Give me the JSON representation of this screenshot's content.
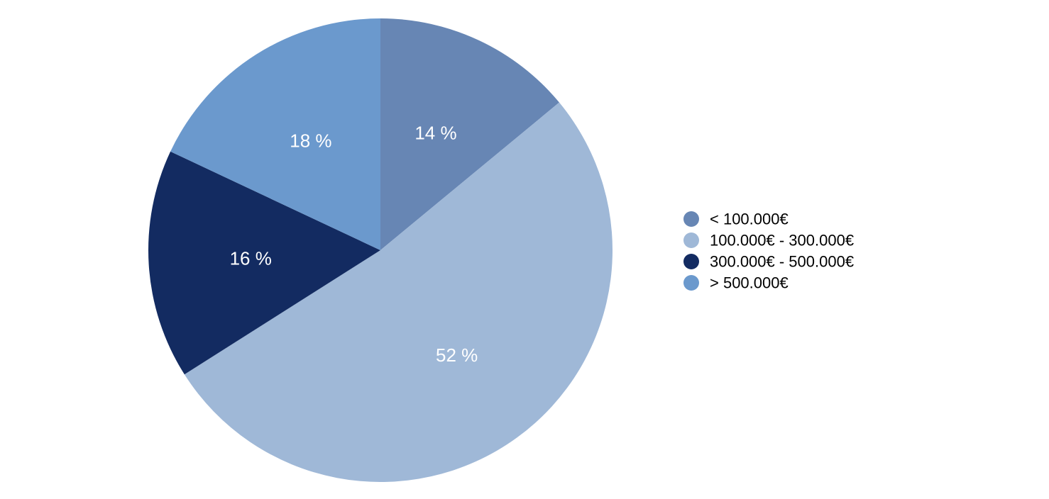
{
  "chart_data": {
    "type": "pie",
    "start_angle_deg": 0,
    "direction": "clockwise",
    "legend_position": "right",
    "slices": [
      {
        "label": "< 100.000€",
        "value": 14,
        "display": "14 %",
        "color": "#6786b4"
      },
      {
        "label": "100.000€ - 300.000€",
        "value": 52,
        "display": "52 %",
        "color": "#9fb8d7"
      },
      {
        "label": "300.000€ - 500.000€",
        "value": 16,
        "display": "16 %",
        "color": "#132b61"
      },
      {
        "label": "> 500.000€",
        "value": 18,
        "display": "18 %",
        "color": "#6b99cd"
      }
    ]
  }
}
